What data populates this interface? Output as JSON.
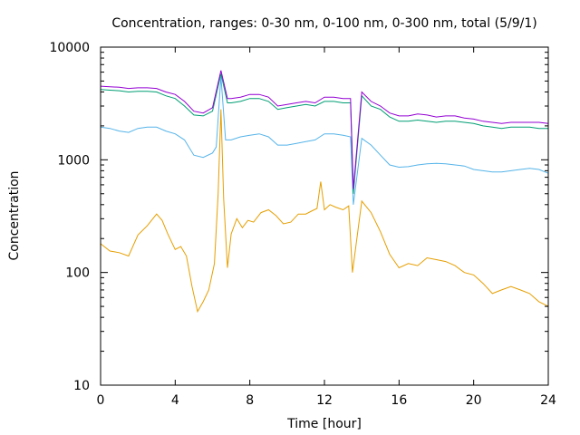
{
  "chart_data": {
    "type": "line",
    "title": "Concentration, ranges: 0-30 nm, 0-100 nm, 0-300 nm, total (5/9/1)",
    "xlabel": "Time [hour]",
    "ylabel": "Concentration",
    "xlim": [
      0,
      24
    ],
    "ylim": [
      10,
      10000
    ],
    "yscale": "log",
    "grid": false,
    "legend": "none",
    "x_ticks": [
      {
        "value": 0,
        "label": "0"
      },
      {
        "value": 4,
        "label": "4"
      },
      {
        "value": 8,
        "label": "8"
      },
      {
        "value": 12,
        "label": "12"
      },
      {
        "value": 16,
        "label": "16"
      },
      {
        "value": 20,
        "label": "20"
      },
      {
        "value": 24,
        "label": "24"
      }
    ],
    "y_ticks": [
      {
        "value": 10,
        "label": "10"
      },
      {
        "value": 100,
        "label": "100"
      },
      {
        "value": 1000,
        "label": "1000"
      },
      {
        "value": 10000,
        "label": "10000"
      }
    ],
    "series": [
      {
        "color": "#e69f00",
        "x": [
          0,
          0.5,
          1,
          1.5,
          2,
          2.5,
          3,
          3.3,
          3.6,
          4,
          4.3,
          4.6,
          4.9,
          5.2,
          5.5,
          5.8,
          6.1,
          6.3,
          6.45,
          6.6,
          6.8,
          7,
          7.3,
          7.6,
          7.9,
          8.2,
          8.6,
          9,
          9.4,
          9.8,
          10.2,
          10.6,
          11,
          11.3,
          11.6,
          11.8,
          12,
          12.3,
          12.6,
          13,
          13.3,
          13.5,
          14,
          14.5,
          15,
          15.5,
          16,
          16.5,
          17,
          17.5,
          18,
          18.5,
          19,
          19.5,
          20,
          20.5,
          21,
          21.5,
          22,
          22.5,
          23,
          23.5,
          24
        ],
        "y": [
          180,
          155,
          150,
          140,
          215,
          260,
          330,
          290,
          220,
          160,
          170,
          140,
          75,
          45,
          55,
          70,
          120,
          500,
          2800,
          450,
          110,
          220,
          300,
          250,
          290,
          280,
          340,
          360,
          320,
          270,
          280,
          330,
          330,
          350,
          370,
          640,
          360,
          400,
          380,
          360,
          390,
          100,
          430,
          340,
          230,
          145,
          110,
          120,
          115,
          135,
          130,
          125,
          115,
          100,
          95,
          80,
          65,
          70,
          75,
          70,
          65,
          55,
          50
        ]
      },
      {
        "color": "#56b4e9",
        "x": [
          0,
          0.5,
          1,
          1.5,
          2,
          2.5,
          3,
          3.5,
          4,
          4.5,
          5,
          5.5,
          6,
          6.2,
          6.45,
          6.7,
          7,
          7.5,
          8,
          8.5,
          9,
          9.5,
          10,
          10.5,
          11,
          11.5,
          12,
          12.5,
          13,
          13.4,
          13.55,
          14,
          14.5,
          15,
          15.5,
          16,
          16.5,
          17,
          17.5,
          18,
          18.5,
          19,
          19.5,
          20,
          20.5,
          21,
          21.5,
          22,
          22.5,
          23,
          23.5,
          24
        ],
        "y": [
          1950,
          1900,
          1800,
          1750,
          1900,
          1950,
          1950,
          1800,
          1700,
          1500,
          1100,
          1050,
          1150,
          1300,
          5500,
          1500,
          1500,
          1600,
          1650,
          1700,
          1600,
          1350,
          1350,
          1400,
          1450,
          1500,
          1700,
          1700,
          1650,
          1600,
          400,
          1550,
          1350,
          1100,
          900,
          860,
          870,
          900,
          920,
          930,
          920,
          900,
          880,
          820,
          800,
          780,
          780,
          800,
          820,
          840,
          820,
          760
        ]
      },
      {
        "color": "#009e73",
        "x": [
          0,
          0.5,
          1,
          1.5,
          2,
          2.5,
          3,
          3.5,
          4,
          4.5,
          5,
          5.5,
          6,
          6.45,
          6.8,
          7,
          7.5,
          8,
          8.5,
          9,
          9.5,
          10,
          10.5,
          11,
          11.5,
          12,
          12.5,
          13,
          13.4,
          13.55,
          14,
          14.5,
          15,
          15.5,
          16,
          16.5,
          17,
          17.5,
          18,
          18.5,
          19,
          19.5,
          20,
          20.5,
          21,
          21.5,
          22,
          22.5,
          23,
          23.5,
          24
        ],
        "y": [
          4200,
          4150,
          4100,
          4000,
          4050,
          4050,
          4000,
          3700,
          3500,
          3000,
          2500,
          2450,
          2700,
          5800,
          3200,
          3200,
          3300,
          3500,
          3500,
          3300,
          2800,
          2900,
          3000,
          3100,
          3000,
          3300,
          3300,
          3200,
          3200,
          500,
          3700,
          3000,
          2800,
          2400,
          2200,
          2200,
          2250,
          2200,
          2150,
          2200,
          2200,
          2150,
          2100,
          2000,
          1950,
          1900,
          1950,
          1950,
          1950,
          1900,
          1900
        ]
      },
      {
        "color": "#9400d3",
        "x": [
          0,
          0.5,
          1,
          1.5,
          2,
          2.5,
          3,
          3.5,
          4,
          4.5,
          5,
          5.5,
          6,
          6.45,
          6.8,
          7,
          7.5,
          8,
          8.5,
          9,
          9.5,
          10,
          10.5,
          11,
          11.5,
          12,
          12.5,
          13,
          13.4,
          13.55,
          14,
          14.5,
          15,
          15.5,
          16,
          16.5,
          17,
          17.5,
          18,
          18.5,
          19,
          19.5,
          20,
          20.5,
          21,
          21.5,
          22,
          22.5,
          23,
          23.5,
          24
        ],
        "y": [
          4500,
          4450,
          4400,
          4300,
          4350,
          4350,
          4300,
          4000,
          3800,
          3300,
          2700,
          2600,
          2900,
          6200,
          3500,
          3500,
          3600,
          3800,
          3800,
          3600,
          3000,
          3100,
          3200,
          3300,
          3200,
          3600,
          3600,
          3500,
          3500,
          550,
          4000,
          3300,
          3000,
          2600,
          2450,
          2450,
          2550,
          2500,
          2400,
          2450,
          2450,
          2350,
          2300,
          2200,
          2150,
          2100,
          2150,
          2150,
          2150,
          2150,
          2100
        ]
      }
    ]
  }
}
